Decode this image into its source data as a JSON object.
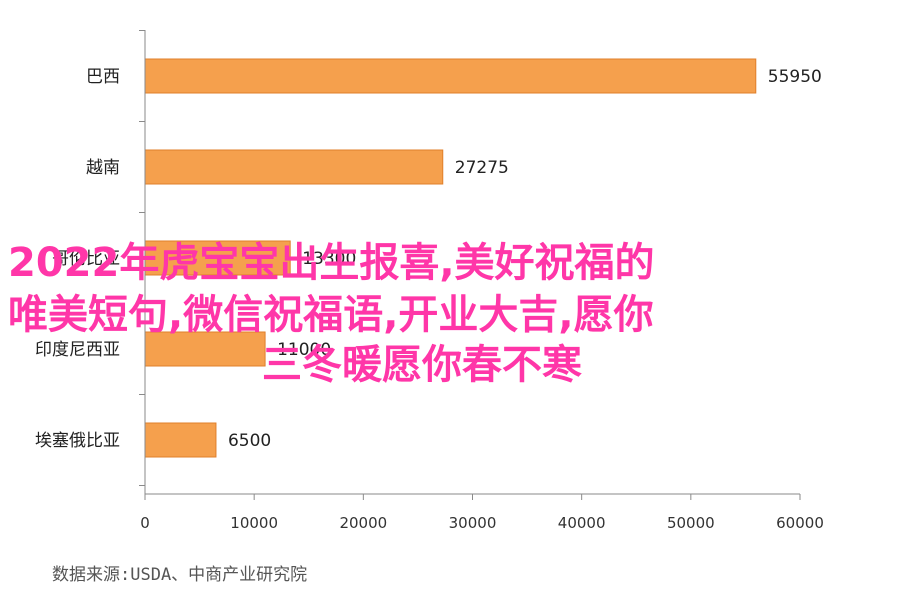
{
  "chart_data": {
    "type": "bar",
    "orientation": "horizontal",
    "categories": [
      "巴西",
      "越南",
      "哥伦比亚",
      "印度尼西亚",
      "埃塞俄比亚"
    ],
    "values": [
      55950,
      27275,
      13300,
      11000,
      6500
    ],
    "value_labels": [
      "55950",
      "27275",
      "13300",
      "11000",
      "6500"
    ],
    "xlim": [
      0,
      60000
    ],
    "x_ticks": [
      "0",
      "10000",
      "20000",
      "30000",
      "40000",
      "50000",
      "60000"
    ],
    "bar_color": "#f5a04d",
    "bar_edge_color": "#e07f2a",
    "grid": false,
    "source": "数据来源:USDA、中商产业研究院"
  },
  "overlay": {
    "line1": "2022年虎宝宝出生报喜,美好祝福的",
    "line2": "唯美短句,微信祝福语,开业大吉,愿你",
    "line3": "三冬暖愿你春不寒",
    "color": "#ff36a8"
  }
}
